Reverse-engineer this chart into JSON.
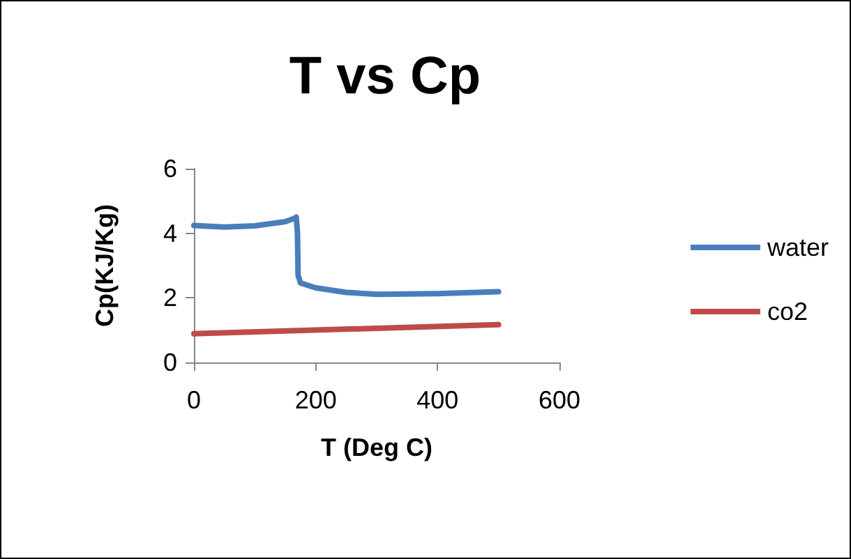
{
  "chart_data": {
    "type": "line",
    "title": "T vs Cp",
    "xlabel": "T (Deg C)",
    "ylabel": "Cp(KJ/Kg)",
    "xlim": [
      0,
      600
    ],
    "xticks": [
      0,
      200,
      400,
      600
    ],
    "ylim": [
      0,
      6
    ],
    "yticks": [
      0,
      2,
      4,
      6
    ],
    "grid": false,
    "legend": "right",
    "marker": "none",
    "line_style": "solid",
    "series": [
      {
        "name": "water",
        "color": "#4a7ebb",
        "x": [
          0,
          50,
          100,
          150,
          165,
          168,
          170,
          171,
          175,
          200,
          250,
          300,
          400,
          500
        ],
        "values": [
          4.24,
          4.19,
          4.23,
          4.36,
          4.46,
          4.5,
          4.0,
          2.7,
          2.46,
          2.31,
          2.17,
          2.11,
          2.13,
          2.19
        ]
      },
      {
        "name": "co2",
        "color": "#be4b48",
        "x": [
          0,
          500
        ],
        "values": [
          0.89,
          1.17
        ]
      }
    ]
  }
}
